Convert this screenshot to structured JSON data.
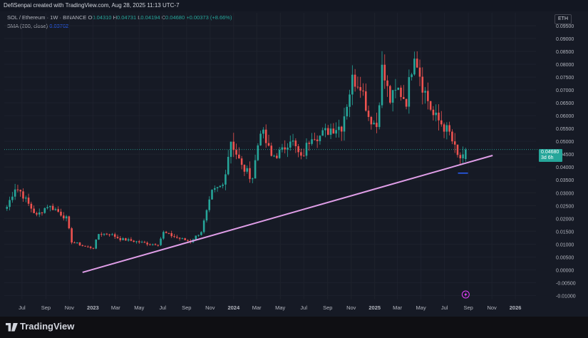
{
  "header": {
    "credit": "DefiSenpai created with TradingView.com, Aug 28, 2025 11:13 UTC-7",
    "symbol": "SOL / Ethereum · 1W · BINANCE",
    "o_label": "O",
    "o_value": "0.04310",
    "h_label": "H",
    "h_value": "0.04731",
    "l_label": "L",
    "l_value": "0.04194",
    "c_label": "C",
    "c_value": "0.04680",
    "change": "+0.00373 (+8.66%)",
    "sma_label": "SMA (200, close)",
    "sma_value": "0.03762",
    "currency": "ETH"
  },
  "price_badge": {
    "price": "0.04680",
    "countdown": "3d 6h"
  },
  "footer": {
    "brand": "TradingView"
  },
  "colors": {
    "up": "#26a69a",
    "down": "#ef5350",
    "trendline": "#e09ee8",
    "background": "#161a25",
    "grid": "#1e222d",
    "sma": "#2962ff",
    "marker": "#e040fb"
  },
  "icons": {
    "logo": "tradingview-logo-icon",
    "event": "lightning-event-icon"
  },
  "chart_data": {
    "type": "candlestick",
    "title": "",
    "xlabel": "",
    "ylabel": "",
    "ylim": [
      -0.011,
      0.1
    ],
    "yticks": [
      "0.09500",
      "0.09000",
      "0.08500",
      "0.08000",
      "0.07500",
      "0.07000",
      "0.06500",
      "0.06000",
      "0.05500",
      "0.05000",
      "0.04500",
      "0.04000",
      "0.03500",
      "0.03000",
      "0.02500",
      "0.02000",
      "0.01500",
      "0.01000",
      "0.00500",
      "0.00000",
      "-0.00500",
      "-0.01000"
    ],
    "xticks": [
      {
        "label": "Jul",
        "date": "2022-07-01"
      },
      {
        "label": "Sep",
        "date": "2022-09-01"
      },
      {
        "label": "Nov",
        "date": "2022-11-01"
      },
      {
        "label": "2023",
        "date": "2023-01-01",
        "bold": true
      },
      {
        "label": "Mar",
        "date": "2023-03-01"
      },
      {
        "label": "May",
        "date": "2023-05-01"
      },
      {
        "label": "Jul",
        "date": "2023-07-01"
      },
      {
        "label": "Sep",
        "date": "2023-09-01"
      },
      {
        "label": "Nov",
        "date": "2023-11-01"
      },
      {
        "label": "2024",
        "date": "2024-01-01",
        "bold": true
      },
      {
        "label": "Mar",
        "date": "2024-03-01"
      },
      {
        "label": "May",
        "date": "2024-05-01"
      },
      {
        "label": "Jul",
        "date": "2024-07-01"
      },
      {
        "label": "Sep",
        "date": "2024-09-01"
      },
      {
        "label": "Nov",
        "date": "2024-11-01"
      },
      {
        "label": "2025",
        "date": "2025-01-01",
        "bold": true
      },
      {
        "label": "Mar",
        "date": "2025-03-01"
      },
      {
        "label": "May",
        "date": "2025-05-01"
      },
      {
        "label": "Jul",
        "date": "2025-07-01"
      },
      {
        "label": "Sep",
        "date": "2025-09-01"
      },
      {
        "label": "Nov",
        "date": "2025-11-01"
      },
      {
        "label": "2026",
        "date": "2026-01-01",
        "bold": true
      }
    ],
    "keypoints": [
      [
        "2022-05-23",
        0.0245
      ],
      [
        "2022-06-13",
        0.032
      ],
      [
        "2022-06-27",
        0.0305
      ],
      [
        "2022-07-18",
        0.0255
      ],
      [
        "2022-08-08",
        0.021
      ],
      [
        "2022-08-22",
        0.023
      ],
      [
        "2022-09-05",
        0.025
      ],
      [
        "2022-09-26",
        0.0235
      ],
      [
        "2022-10-24",
        0.02
      ],
      [
        "2022-11-07",
        0.011
      ],
      [
        "2022-12-12",
        0.009
      ],
      [
        "2023-01-02",
        0.0085
      ],
      [
        "2023-01-16",
        0.014
      ],
      [
        "2023-02-13",
        0.014
      ],
      [
        "2023-03-13",
        0.012
      ],
      [
        "2023-04-24",
        0.011
      ],
      [
        "2023-05-29",
        0.01
      ],
      [
        "2023-06-19",
        0.01
      ],
      [
        "2023-07-03",
        0.0145
      ],
      [
        "2023-08-07",
        0.0125
      ],
      [
        "2023-09-11",
        0.011
      ],
      [
        "2023-10-09",
        0.015
      ],
      [
        "2023-11-06",
        0.03
      ],
      [
        "2023-12-04",
        0.033
      ],
      [
        "2023-12-25",
        0.0505
      ],
      [
        "2024-01-22",
        0.04
      ],
      [
        "2024-02-19",
        0.036
      ],
      [
        "2024-03-11",
        0.055
      ],
      [
        "2024-04-08",
        0.044
      ],
      [
        "2024-05-06",
        0.046
      ],
      [
        "2024-05-27",
        0.0515
      ],
      [
        "2024-06-24",
        0.043
      ],
      [
        "2024-07-22",
        0.053
      ],
      [
        "2024-08-12",
        0.052
      ],
      [
        "2024-09-09",
        0.055
      ],
      [
        "2024-10-07",
        0.056
      ],
      [
        "2024-11-04",
        0.074
      ],
      [
        "2024-11-25",
        0.073
      ],
      [
        "2024-12-16",
        0.06
      ],
      [
        "2025-01-06",
        0.056
      ],
      [
        "2025-01-20",
        0.078
      ],
      [
        "2025-02-10",
        0.066
      ],
      [
        "2025-03-03",
        0.07
      ],
      [
        "2025-03-24",
        0.066
      ],
      [
        "2025-04-14",
        0.0855
      ],
      [
        "2025-05-05",
        0.072
      ],
      [
        "2025-06-02",
        0.06
      ],
      [
        "2025-06-23",
        0.057
      ],
      [
        "2025-07-14",
        0.053
      ],
      [
        "2025-08-04",
        0.044
      ],
      [
        "2025-08-18",
        0.0431
      ],
      [
        "2025-08-25",
        0.0468
      ]
    ],
    "trendline": [
      [
        "2022-12-05",
        -0.001
      ],
      [
        "2025-11-03",
        0.0445
      ]
    ],
    "last_price": 0.0468,
    "sma_200": 0.03762
  }
}
